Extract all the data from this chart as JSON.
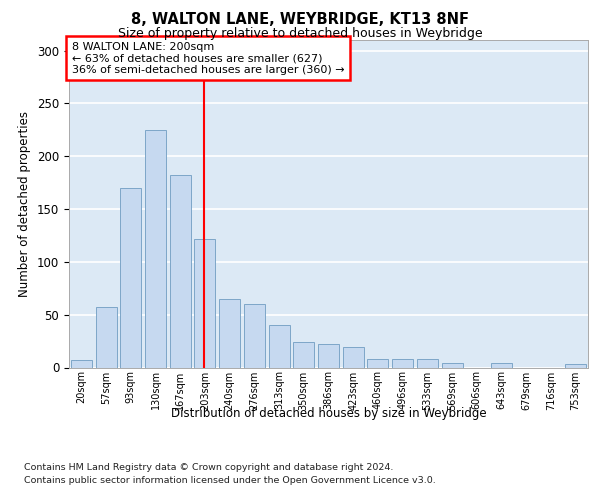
{
  "title1": "8, WALTON LANE, WEYBRIDGE, KT13 8NF",
  "title2": "Size of property relative to detached houses in Weybridge",
  "xlabel": "Distribution of detached houses by size in Weybridge",
  "ylabel": "Number of detached properties",
  "categories": [
    "20sqm",
    "57sqm",
    "93sqm",
    "130sqm",
    "167sqm",
    "203sqm",
    "240sqm",
    "276sqm",
    "313sqm",
    "350sqm",
    "386sqm",
    "423sqm",
    "460sqm",
    "496sqm",
    "533sqm",
    "569sqm",
    "606sqm",
    "643sqm",
    "679sqm",
    "716sqm",
    "753sqm"
  ],
  "values": [
    7,
    57,
    170,
    225,
    182,
    122,
    65,
    60,
    40,
    24,
    22,
    19,
    8,
    8,
    8,
    4,
    0,
    4,
    0,
    0,
    3
  ],
  "bar_color": "#c6d9f0",
  "bar_edge_color": "#7da6c8",
  "vline_x": 4.97,
  "vline_color": "red",
  "annotation_text": "8 WALTON LANE: 200sqm\n← 63% of detached houses are smaller (627)\n36% of semi-detached houses are larger (360) →",
  "annotation_box_color": "red",
  "footnote1": "Contains HM Land Registry data © Crown copyright and database right 2024.",
  "footnote2": "Contains public sector information licensed under the Open Government Licence v3.0.",
  "ylim": [
    0,
    310
  ],
  "yticks": [
    0,
    50,
    100,
    150,
    200,
    250,
    300
  ],
  "bg_color": "#dce9f5",
  "grid_color": "white"
}
